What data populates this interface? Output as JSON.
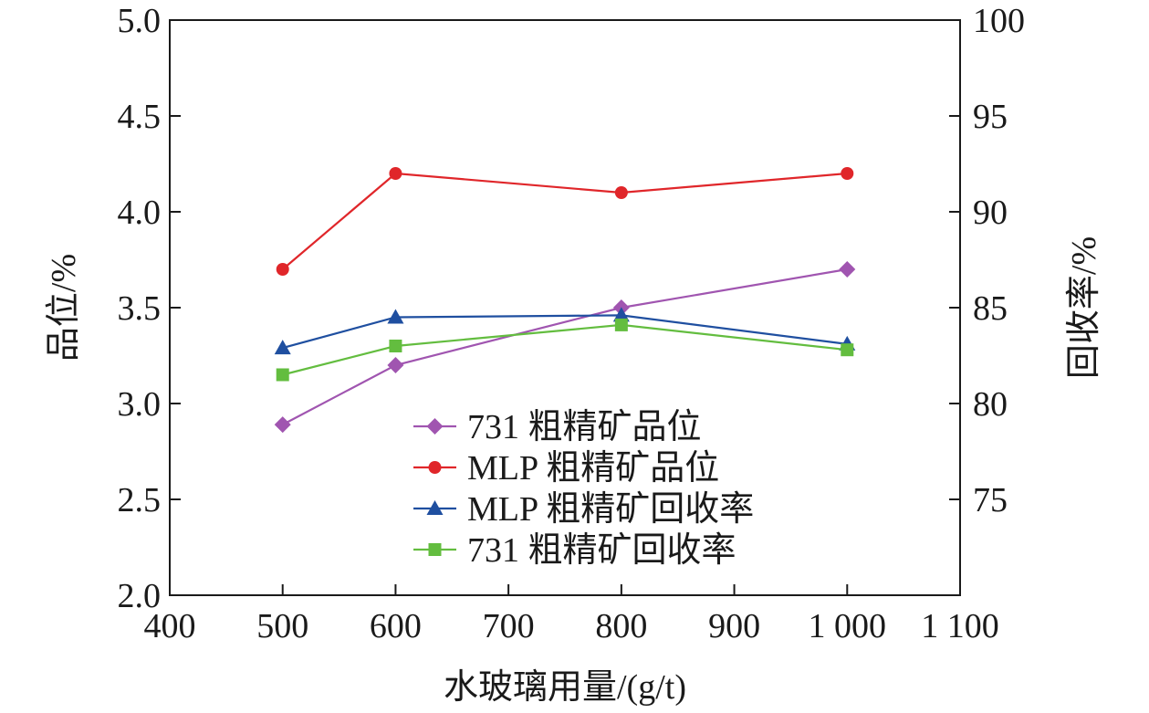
{
  "chart_data": {
    "type": "line",
    "xlabel": "水玻璃用量/(g/t)",
    "ylabel_left": "品位/%",
    "ylabel_right": "回收率/%",
    "xlim": [
      400,
      1100
    ],
    "ylim_left": [
      2.0,
      5.0
    ],
    "ylim_right": [
      70,
      100
    ],
    "x_ticks": [
      400,
      500,
      600,
      700,
      800,
      900,
      1000,
      1100
    ],
    "x_tick_labels": [
      "400",
      "500",
      "600",
      "700",
      "800",
      "900",
      "1 000",
      "1 100"
    ],
    "y_left_ticks": [
      2.0,
      2.5,
      3.0,
      3.5,
      4.0,
      4.5,
      5.0
    ],
    "y_left_tick_labels": [
      "2.0",
      "2.5",
      "3.0",
      "3.5",
      "4.0",
      "4.5",
      "5.0"
    ],
    "y_right_ticks": [
      75,
      80,
      85,
      90,
      95,
      100
    ],
    "y_right_tick_labels": [
      "75",
      "80",
      "85",
      "90",
      "95",
      "100"
    ],
    "grid": false,
    "legend_position": "bottom-center",
    "series": [
      {
        "name": "731 粗精矿品位",
        "axis": "left",
        "marker": "diamond",
        "color": "#a055b0",
        "x": [
          500,
          600,
          800,
          1000
        ],
        "values": [
          2.89,
          3.2,
          3.5,
          3.7
        ]
      },
      {
        "name": "MLP 粗精矿品位",
        "axis": "left",
        "marker": "circle",
        "color": "#e0262a",
        "x": [
          500,
          600,
          800,
          1000
        ],
        "values": [
          3.7,
          4.2,
          4.1,
          4.2
        ]
      },
      {
        "name": "MLP 粗精矿回收率",
        "axis": "right",
        "marker": "triangle",
        "color": "#1f4fa0",
        "x": [
          500,
          600,
          800,
          1000
        ],
        "values": [
          82.9,
          84.5,
          84.6,
          83.1
        ]
      },
      {
        "name": "731 粗精矿回收率",
        "axis": "right",
        "marker": "square",
        "color": "#63bd3f",
        "x": [
          500,
          600,
          800,
          1000
        ],
        "values": [
          81.5,
          83.0,
          84.1,
          82.8
        ]
      }
    ]
  }
}
